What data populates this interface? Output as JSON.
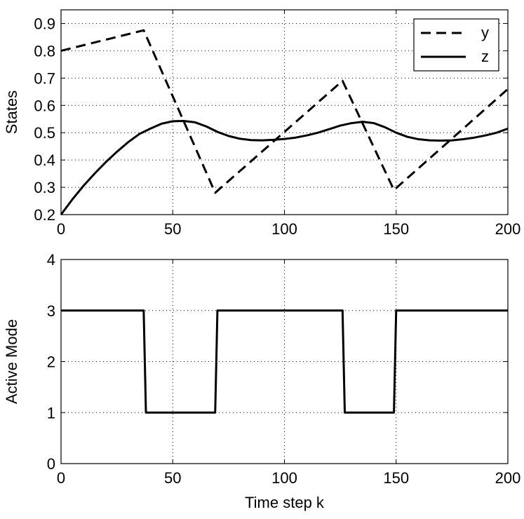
{
  "chart_data": [
    {
      "type": "line",
      "title": "",
      "xlabel": "",
      "ylabel": "States",
      "xlim": [
        0,
        200
      ],
      "ylim": [
        0.2,
        0.95
      ],
      "xticks": [
        0,
        50,
        100,
        150,
        200
      ],
      "xtick_labels": [
        "0",
        "50",
        "100",
        "150",
        "200"
      ],
      "yticks": [
        0.2,
        0.3,
        0.4,
        0.5,
        0.6,
        0.7,
        0.8,
        0.9
      ],
      "ytick_labels": [
        "0.2",
        "0.3",
        "0.4",
        "0.5",
        "0.6",
        "0.7",
        "0.8",
        "0.9"
      ],
      "grid": true,
      "legend_position": "top-right",
      "series": [
        {
          "name": "y",
          "style": "dashed",
          "x": [
            0,
            37,
            69,
            126,
            149,
            200
          ],
          "values": [
            0.8,
            0.875,
            0.28,
            0.69,
            0.29,
            0.66
          ]
        },
        {
          "name": "z",
          "style": "solid",
          "x": [
            0,
            5,
            10,
            15,
            20,
            25,
            30,
            35,
            40,
            45,
            50,
            55,
            60,
            65,
            70,
            75,
            80,
            85,
            90,
            95,
            100,
            105,
            110,
            115,
            120,
            125,
            130,
            135,
            140,
            145,
            150,
            155,
            160,
            165,
            170,
            175,
            180,
            185,
            190,
            195,
            200
          ],
          "values": [
            0.2,
            0.255,
            0.305,
            0.35,
            0.392,
            0.43,
            0.465,
            0.495,
            0.515,
            0.533,
            0.542,
            0.543,
            0.538,
            0.523,
            0.503,
            0.488,
            0.478,
            0.473,
            0.472,
            0.474,
            0.477,
            0.482,
            0.49,
            0.5,
            0.513,
            0.526,
            0.535,
            0.54,
            0.535,
            0.52,
            0.5,
            0.485,
            0.476,
            0.472,
            0.471,
            0.472,
            0.476,
            0.482,
            0.49,
            0.5,
            0.515
          ]
        }
      ]
    },
    {
      "type": "line",
      "title": "",
      "xlabel": "Time step k",
      "ylabel": "Active Mode",
      "xlim": [
        0,
        200
      ],
      "ylim": [
        0,
        4
      ],
      "xticks": [
        0,
        50,
        100,
        150,
        200
      ],
      "xtick_labels": [
        "0",
        "50",
        "100",
        "150",
        "200"
      ],
      "yticks": [
        0,
        1,
        2,
        3,
        4
      ],
      "ytick_labels": [
        "0",
        "1",
        "2",
        "3",
        "4"
      ],
      "grid": true,
      "series": [
        {
          "name": "Active Mode",
          "style": "solid",
          "x": [
            0,
            37,
            38,
            69,
            70,
            126,
            127,
            149,
            150,
            200
          ],
          "values": [
            3,
            3,
            1,
            1,
            3,
            3,
            1,
            1,
            3,
            3
          ]
        }
      ]
    }
  ]
}
